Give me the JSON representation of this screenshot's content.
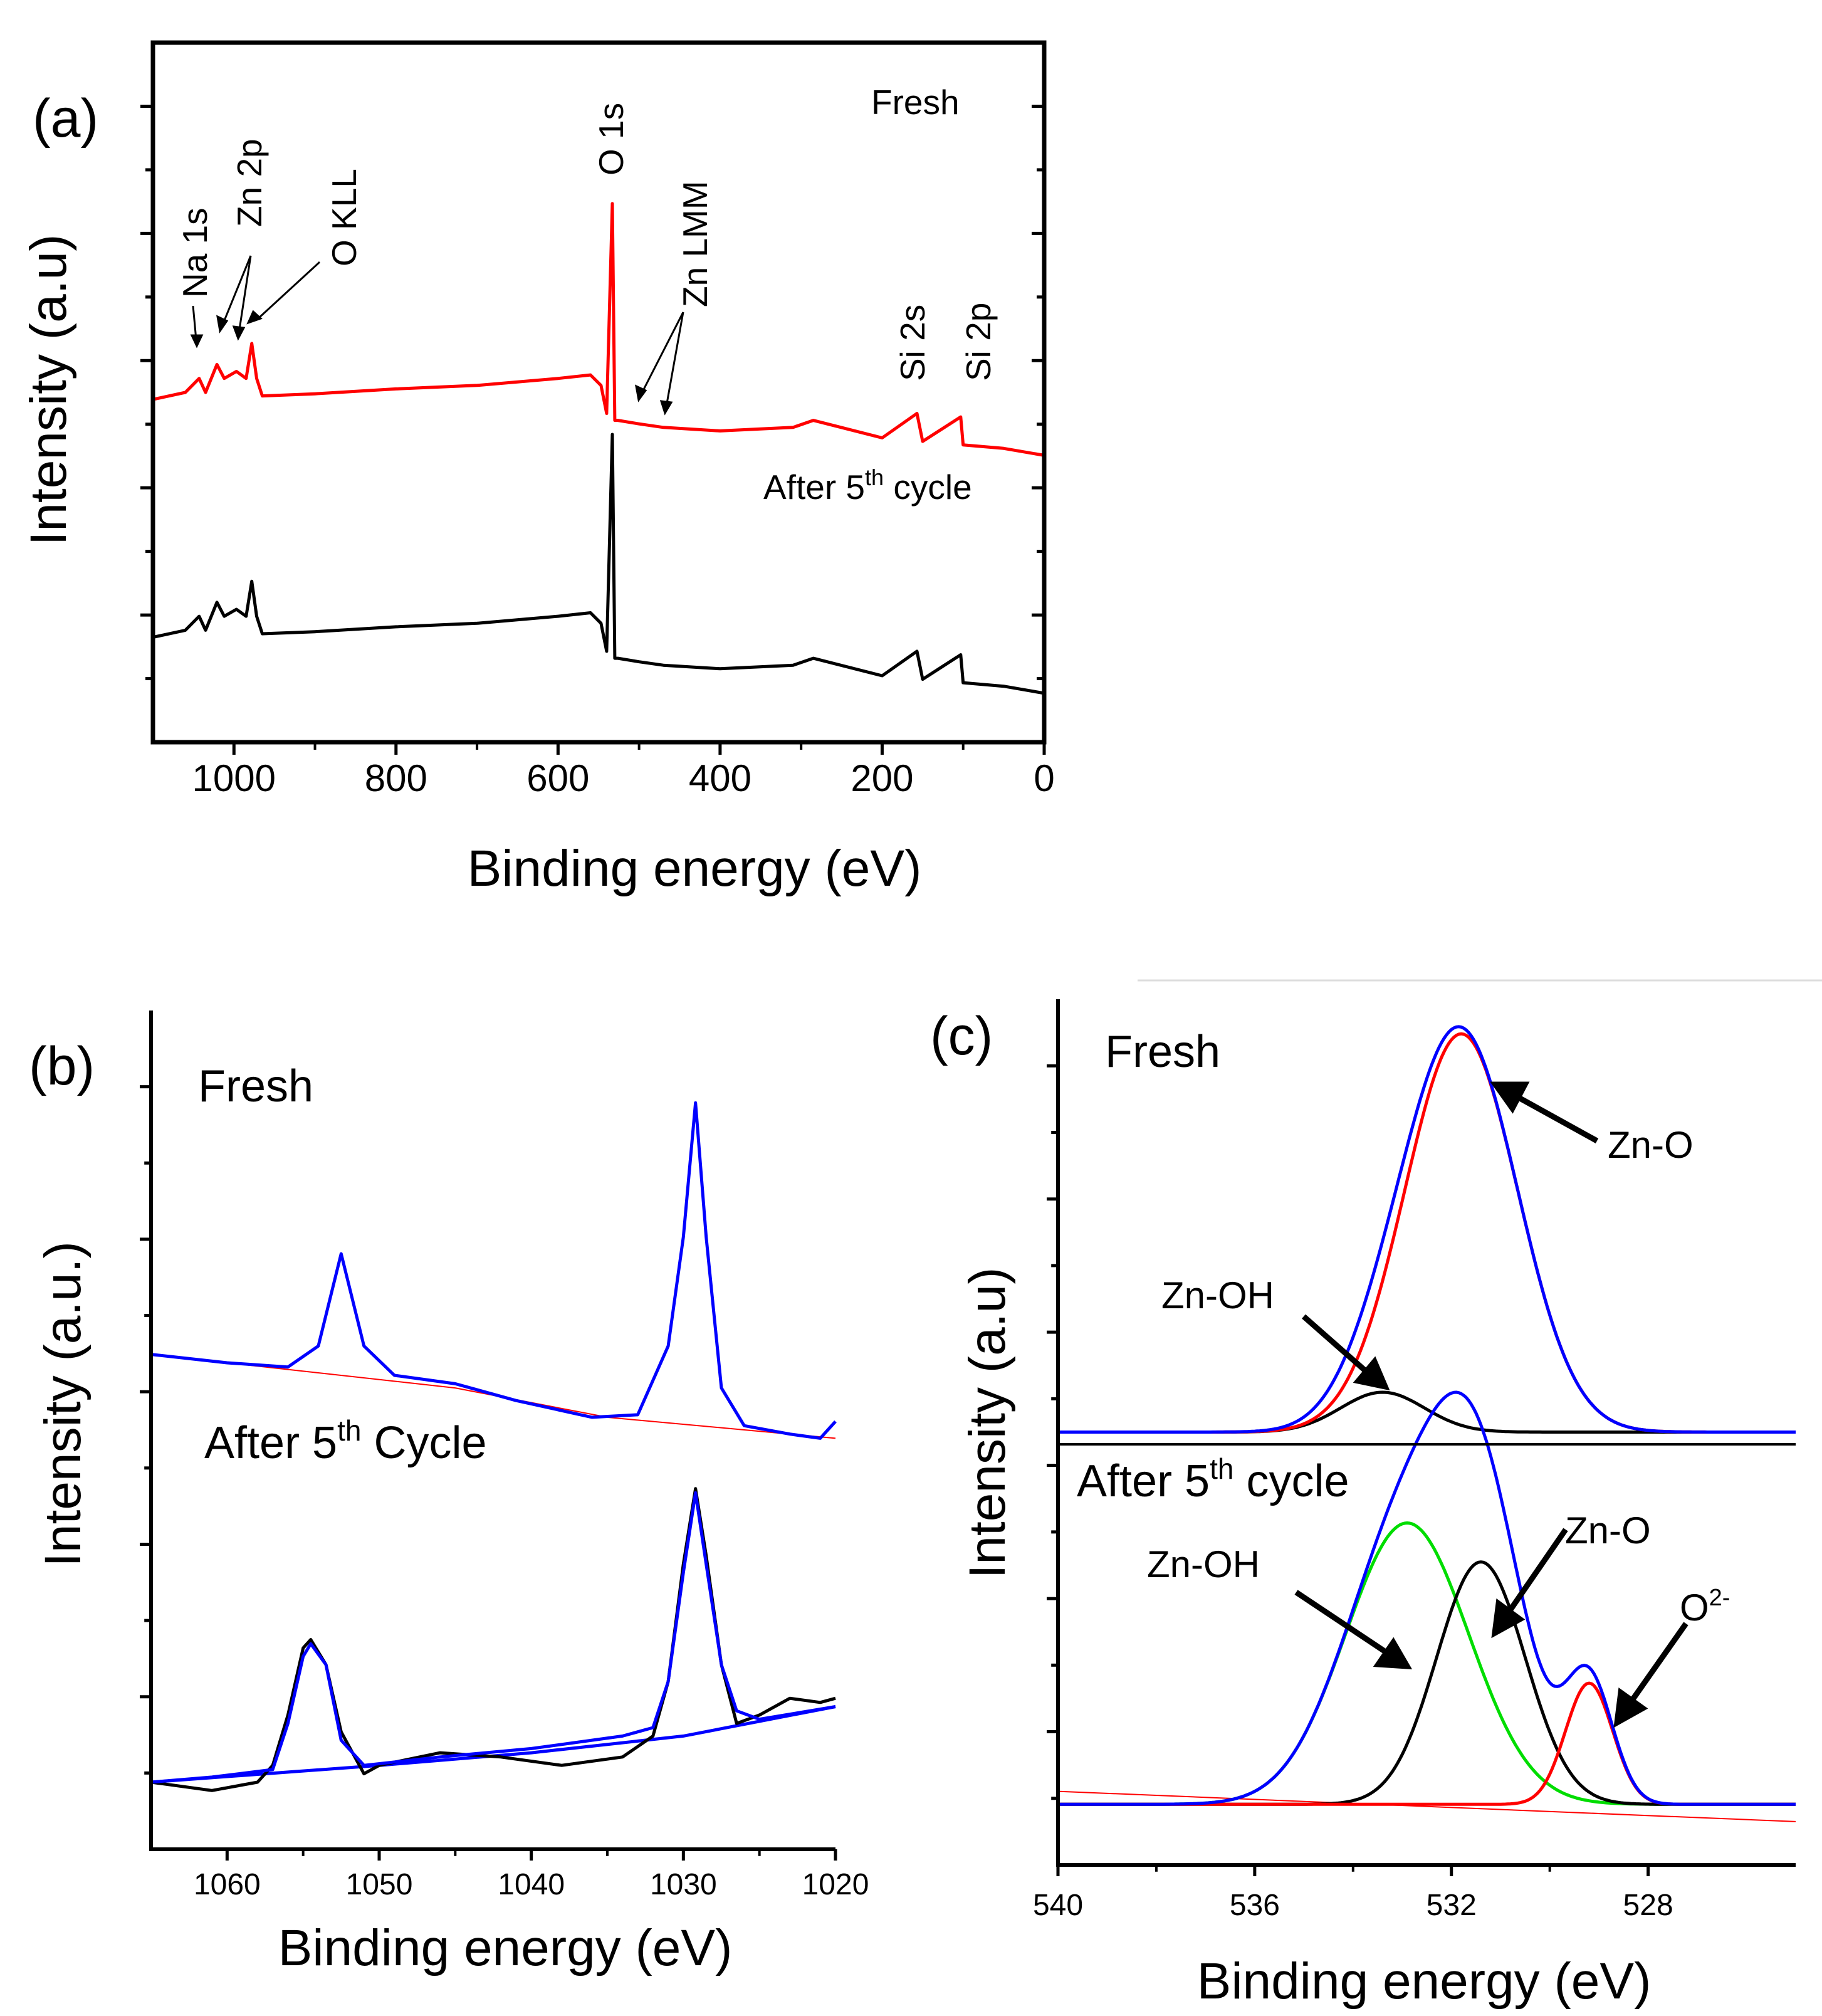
{
  "colors": {
    "fresh": "#ff0000",
    "after": "#000000",
    "fit": "#0000ff",
    "baseline": "#ff0000",
    "zn_oh_after": "#00dd00",
    "axis": "#000000"
  },
  "chart_data": [
    {
      "id": "a",
      "type": "line",
      "panel_label": "(a)",
      "title": "",
      "xlabel": "Binding energy (eV)",
      "ylabel": "Intensity (a.u)",
      "xlim": [
        1100,
        0
      ],
      "xticks": [
        1000,
        800,
        600,
        400,
        200,
        0
      ],
      "x_tick_labels": [
        "1000",
        "800",
        "600",
        "400",
        "200",
        "0"
      ],
      "y_units": "relative intensity, 0 = bottom of frame",
      "ylim": [
        0,
        100
      ],
      "legend": {
        "fresh": "Fresh",
        "after_base": "After 5",
        "after_sup": "th",
        "after_tail": " cycle"
      },
      "peak_labels": [
        "Na 1s",
        "Zn 2p",
        "O KLL",
        "O 1s",
        "Zn LMM",
        "Si 2s",
        "Si 2p"
      ],
      "series": [
        {
          "name": "Fresh",
          "color": "#ff0000",
          "x": [
            1100,
            1060,
            1043,
            1035,
            1021,
            1012,
            997,
            985,
            978,
            972,
            965,
            900,
            800,
            700,
            600,
            560,
            547,
            540,
            533,
            530,
            526,
            500,
            470,
            400,
            310,
            285,
            200,
            157,
            150,
            103,
            100,
            50,
            0
          ],
          "y": [
            49,
            50,
            52,
            50,
            54,
            52,
            53,
            52,
            57,
            52,
            49.5,
            49.8,
            50.5,
            51,
            52,
            52.5,
            51,
            47,
            77,
            46,
            46,
            45.5,
            45,
            44.5,
            45,
            46,
            43.5,
            47,
            43,
            46.5,
            42.5,
            42,
            41
          ]
        },
        {
          "name": "After 5th cycle",
          "color": "#000000",
          "x": [
            1100,
            1060,
            1043,
            1035,
            1021,
            1012,
            997,
            985,
            978,
            972,
            965,
            900,
            800,
            700,
            600,
            560,
            547,
            540,
            533,
            530,
            526,
            500,
            470,
            400,
            310,
            285,
            200,
            157,
            150,
            103,
            100,
            50,
            0
          ],
          "y": [
            15,
            16,
            18,
            16,
            20,
            18,
            19,
            18,
            23,
            18,
            15.5,
            15.8,
            16.5,
            17,
            18,
            18.5,
            17,
            13,
            44,
            12,
            12,
            11.5,
            11,
            10.5,
            11,
            12,
            9.5,
            13,
            9,
            12.5,
            8.5,
            8,
            7
          ]
        }
      ]
    },
    {
      "id": "b",
      "type": "line",
      "panel_label": "(b)",
      "title": "",
      "xlabel": "Binding energy (eV)",
      "ylabel": "Intensity (a.u.)",
      "xlim": [
        1065,
        1020
      ],
      "xticks": [
        1060,
        1050,
        1040,
        1030,
        1020
      ],
      "x_tick_labels": [
        "1060",
        "1050",
        "1040",
        "1030",
        "1020"
      ],
      "y_units": "relative intensity, 0 = bottom of frame",
      "ylim": [
        0,
        100
      ],
      "legend": {
        "fresh": "Fresh",
        "after_base": "After 5",
        "after_sup": "th",
        "after_tail": " Cycle"
      },
      "series": [
        {
          "name": "Fresh",
          "role": "data + fit",
          "color": "#0000ff",
          "x": [
            1065,
            1060,
            1056,
            1054,
            1052.5,
            1051,
            1049,
            1045,
            1041,
            1036,
            1033,
            1031,
            1030,
            1029.2,
            1028.5,
            1027.5,
            1026,
            1023,
            1021,
            1020
          ],
          "y": [
            59,
            58,
            57.5,
            60,
            71,
            60,
            56.5,
            55.5,
            53.5,
            51.5,
            51.8,
            60,
            73,
            89,
            73,
            55,
            50.5,
            49.5,
            49,
            51
          ]
        },
        {
          "name": "Fresh baseline",
          "role": "background",
          "color": "#ff0000",
          "x": [
            1065,
            1045,
            1035,
            1020
          ],
          "y": [
            59,
            55,
            51.5,
            49
          ]
        },
        {
          "name": "After 5th Cycle",
          "role": "data",
          "color": "#000000",
          "x": [
            1065,
            1061,
            1058,
            1057,
            1056,
            1055,
            1054.5,
            1053.5,
            1052.5,
            1051,
            1050,
            1046,
            1042,
            1038,
            1034,
            1032,
            1031,
            1030,
            1029.2,
            1028.5,
            1027.5,
            1026.5,
            1025,
            1023,
            1021,
            1020
          ],
          "y": [
            8,
            7,
            8,
            10,
            16,
            24,
            25,
            22,
            14,
            9,
            10,
            11.5,
            11,
            10,
            11,
            13.5,
            20,
            34,
            43,
            35,
            22,
            15,
            16,
            18,
            17.5,
            18
          ]
        },
        {
          "name": "After 5th Cycle fit",
          "role": "fit",
          "color": "#0000ff",
          "x": [
            1065,
            1061,
            1057,
            1056,
            1055,
            1054.5,
            1053.5,
            1052.5,
            1051,
            1046,
            1040,
            1034,
            1032,
            1031,
            1030,
            1029.2,
            1028.5,
            1027.5,
            1026.5,
            1025,
            1020
          ],
          "y": [
            8,
            8.6,
            9.5,
            15,
            23,
            24.5,
            22,
            13,
            10,
            11,
            12,
            13.5,
            14.5,
            20,
            33,
            42.5,
            34,
            22,
            16.5,
            15.5,
            17
          ]
        },
        {
          "name": "After 5th Cycle baseline",
          "role": "background",
          "color": "#0000ff",
          "x": [
            1065,
            1050,
            1040,
            1030,
            1020
          ],
          "y": [
            8,
            10,
            11.5,
            13.5,
            17
          ]
        }
      ]
    },
    {
      "id": "c",
      "type": "line",
      "panel_label": "(c)",
      "title": "",
      "xlabel": "Binding energy (eV)",
      "ylabel": "Intensity (a.u)",
      "xlim": [
        540,
        525
      ],
      "xticks": [
        540,
        536,
        532,
        528
      ],
      "x_tick_labels": [
        "540",
        "536",
        "532",
        "528"
      ],
      "y_units": "relative intensity, 0 = bottom of frame",
      "ylim": [
        0,
        100
      ],
      "legend": {
        "fresh": "Fresh",
        "after_base": "After 5",
        "after_sup": "th",
        "after_tail": " cycle"
      },
      "peak_labels": {
        "zn_o": "Zn-O",
        "zn_oh": "Zn-OH",
        "o2_base": "O",
        "o2_sup": "2-"
      },
      "components": [
        {
          "name": "Fresh Zn-O",
          "color": "#ff0000",
          "panel": "fresh",
          "type": "gaussian",
          "center": 531.8,
          "sigma": 1.15,
          "amplitude": 46,
          "baseline": 50
        },
        {
          "name": "Fresh Zn-OH",
          "color": "#000000",
          "panel": "fresh",
          "type": "gaussian",
          "center": 533.4,
          "sigma": 0.85,
          "amplitude": 4.6,
          "baseline": 50
        },
        {
          "name": "Fresh envelope",
          "color": "#0000ff",
          "panel": "fresh",
          "type": "sum",
          "of": [
            "Fresh Zn-O",
            "Fresh Zn-OH"
          ],
          "baseline": 50
        },
        {
          "name": "After Zn-OH",
          "color": "#00dd00",
          "panel": "after",
          "type": "gaussian",
          "center": 532.9,
          "sigma": 1.25,
          "amplitude": 32.5,
          "baseline": 7
        },
        {
          "name": "After Zn-O",
          "color": "#000000",
          "panel": "after",
          "type": "gaussian",
          "center": 531.4,
          "sigma": 0.9,
          "amplitude": 28,
          "baseline": 7
        },
        {
          "name": "After O2-",
          "color": "#ff0000",
          "panel": "after",
          "type": "gaussian",
          "center": 529.2,
          "sigma": 0.48,
          "amplitude": 14,
          "baseline": 7
        },
        {
          "name": "After envelope",
          "color": "#0000ff",
          "panel": "after",
          "type": "sum",
          "of": [
            "After Zn-OH",
            "After Zn-O",
            "After O2-"
          ],
          "baseline": 7
        }
      ],
      "baselines": [
        {
          "name": "After background",
          "color": "#ff0000",
          "x": [
            540,
            525
          ],
          "y": [
            8.5,
            5
          ]
        }
      ]
    }
  ]
}
